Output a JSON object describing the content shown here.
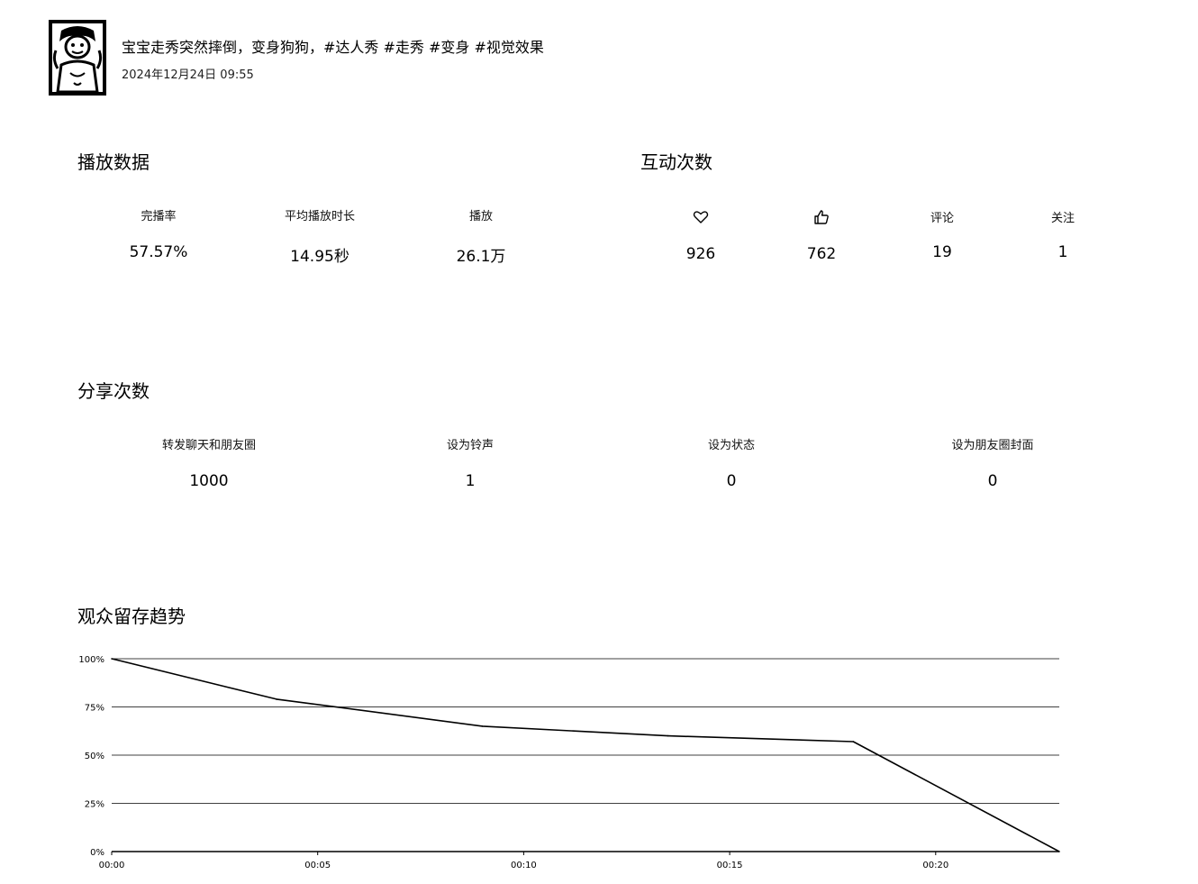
{
  "post": {
    "title": "宝宝走秀突然摔倒，变身狗狗，#达人秀 #走秀 #变身 #视觉效果",
    "date": "2024年12月24日 09:55",
    "avatar_icon": "cartoon-face-avatar"
  },
  "playback": {
    "title": "播放数据",
    "stats": [
      {
        "label": "完播率",
        "value": "57.57%"
      },
      {
        "label": "平均播放时长",
        "value": "14.95秒"
      },
      {
        "label": "播放",
        "value": "26.1万"
      }
    ]
  },
  "interaction": {
    "title": "互动次数",
    "stats": [
      {
        "icon": "heart-icon",
        "value": "926"
      },
      {
        "icon": "thumbs-up-icon",
        "value": "762"
      },
      {
        "label": "评论",
        "value": "19"
      },
      {
        "label": "关注",
        "value": "1"
      }
    ]
  },
  "share": {
    "title": "分享次数",
    "stats": [
      {
        "label": "转发聊天和朋友圈",
        "value": "1000"
      },
      {
        "label": "设为铃声",
        "value": "1"
      },
      {
        "label": "设为状态",
        "value": "0"
      },
      {
        "label": "设为朋友圈封面",
        "value": "0"
      }
    ]
  },
  "retention": {
    "title": "观众留存趋势"
  },
  "chart_data": {
    "type": "line",
    "title": "观众留存趋势",
    "xlabel": "",
    "ylabel": "",
    "x_ticks": [
      "00:00",
      "00:05",
      "00:10",
      "00:15",
      "00:20"
    ],
    "y_ticks": [
      "0%",
      "25%",
      "50%",
      "75%",
      "100%"
    ],
    "ylim": [
      0,
      100
    ],
    "xlim_seconds": [
      0,
      23
    ],
    "points": [
      {
        "t": 0,
        "y": 100
      },
      {
        "t": 4,
        "y": 79
      },
      {
        "t": 9,
        "y": 65
      },
      {
        "t": 13.5,
        "y": 60
      },
      {
        "t": 18,
        "y": 57
      },
      {
        "t": 23,
        "y": 0
      }
    ],
    "grid": true,
    "line_color": "#000000"
  }
}
